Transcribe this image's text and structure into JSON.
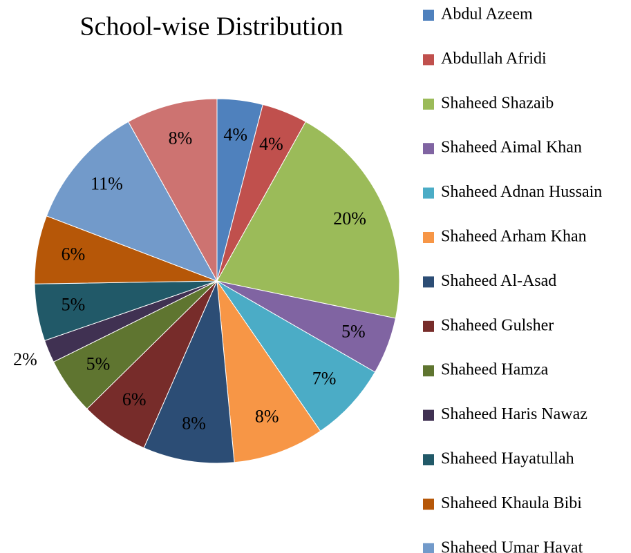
{
  "chart_data": {
    "type": "pie",
    "title": "School-wise Distribution",
    "categories": [
      "Abdul Azeem",
      "Abdullah Afridi",
      "Shaheed Shazaib",
      "Shaheed Aimal Khan",
      "Shaheed Adnan Hussain",
      "Shaheed Arham Khan",
      "Shaheed Al-Asad",
      "Shaheed Gulsher",
      "Shaheed Hamza",
      "Shaheed Haris Nawaz",
      "Shaheed Hayatullah",
      "Shaheed Khaula Bibi",
      "Shaheed Umar Hayat",
      null
    ],
    "values": [
      4,
      4,
      20,
      5,
      7,
      8,
      8,
      6,
      5,
      2,
      5,
      6,
      11,
      8
    ],
    "value_labels": [
      "4%",
      "4%",
      "20%",
      "5%",
      "7%",
      "8%",
      "8%",
      "6%",
      "5%",
      "2%",
      "5%",
      "6%",
      "11%",
      "8%"
    ],
    "colors": [
      "#4f81bd",
      "#c0504d",
      "#9bbb59",
      "#8064a2",
      "#4bacc6",
      "#f79646",
      "#2c4d75",
      "#772c2a",
      "#5f7530",
      "#403152",
      "#215968",
      "#b65708",
      "#729aca",
      "#cd7371"
    ],
    "legend": "right"
  }
}
